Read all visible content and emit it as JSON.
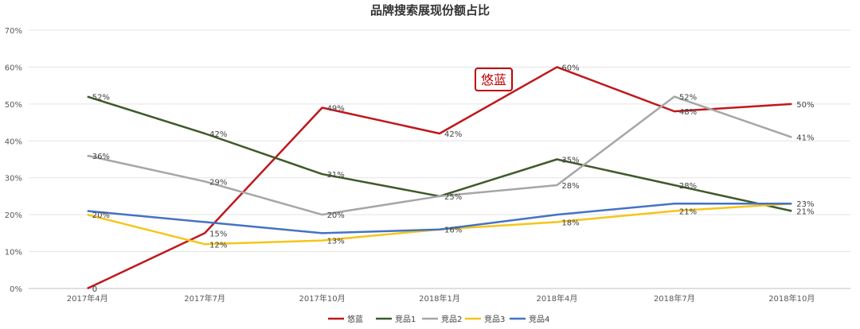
{
  "chart_data": {
    "type": "line",
    "title": "品牌搜索展现份额占比",
    "categories": [
      "2017年4月",
      "2017年7月",
      "2017年10月",
      "2018年1月",
      "2018年4月",
      "2018年7月",
      "2018年10月"
    ],
    "ylim": [
      0,
      70
    ],
    "yticks": [
      0,
      10,
      20,
      30,
      40,
      50,
      60,
      70
    ],
    "ytick_labels": [
      "0%",
      "10%",
      "20%",
      "30%",
      "40%",
      "50%",
      "60%",
      "70%"
    ],
    "grid": true,
    "legend_position": "bottom",
    "series": [
      {
        "name": "悠蓝",
        "color": "#c0171c",
        "values": [
          0,
          15,
          49,
          42,
          60,
          48,
          50
        ],
        "labels": [
          "0",
          "15%",
          "49%",
          "42%",
          "60%",
          "48%",
          "50%"
        ]
      },
      {
        "name": "竞品1",
        "color": "#3f5a29",
        "values": [
          52,
          42,
          31,
          25,
          35,
          28,
          21
        ],
        "labels": [
          "52%",
          "42%",
          "31%",
          "25%",
          "35%",
          "28%",
          "21%"
        ]
      },
      {
        "name": "竞品2",
        "color": "#a6a6a6",
        "values": [
          36,
          29,
          20,
          25,
          28,
          52,
          41
        ],
        "labels": [
          "36%",
          "29%",
          "20%",
          "",
          "28%",
          "52%",
          "41%"
        ]
      },
      {
        "name": "竞品3",
        "color": "#f5c518",
        "values": [
          20,
          12,
          13,
          16,
          18,
          21,
          23
        ],
        "labels": [
          "20%",
          "12%",
          "13%",
          "16%",
          "18%",
          "21%",
          ""
        ]
      },
      {
        "name": "竞品4",
        "color": "#4472c4",
        "values": [
          21,
          18,
          15,
          16,
          20,
          23,
          23
        ],
        "labels": [
          "",
          "",
          "",
          "",
          "",
          "",
          "23%"
        ]
      }
    ],
    "annotation": {
      "text": "悠蓝",
      "color": "#c00000"
    }
  }
}
